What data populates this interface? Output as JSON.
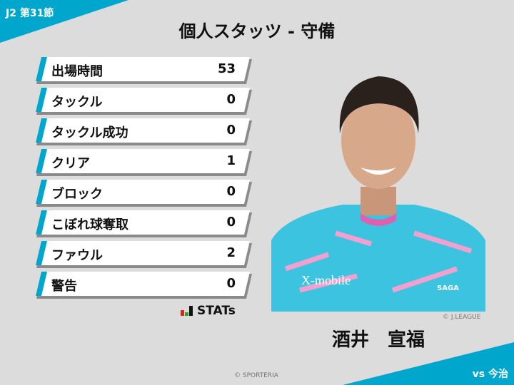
{
  "header": {
    "round": "J2 第31節",
    "title": "個人スタッツ - 守備",
    "opponent": "vs 今治"
  },
  "stats": [
    {
      "label": "出場時間",
      "value": "53"
    },
    {
      "label": "タックル",
      "value": "0"
    },
    {
      "label": "タックル成功",
      "value": "0"
    },
    {
      "label": "クリア",
      "value": "1"
    },
    {
      "label": "ブロック",
      "value": "0"
    },
    {
      "label": "こぼれ球奪取",
      "value": "0"
    },
    {
      "label": "ファウル",
      "value": "2"
    },
    {
      "label": "警告",
      "value": "0"
    }
  ],
  "brand": {
    "stats_logo": "STATs"
  },
  "player": {
    "name": "酒井　宣福",
    "photo_credit": "© J.LEAGUE",
    "jersey_sponsor": "X-mobile",
    "jersey_text": "SAGA"
  },
  "footer": {
    "credit": "© SPORTERIA"
  },
  "colors": {
    "accent": "#00a6cc",
    "background": "#dcdcdc",
    "jersey": "#3cc3e0",
    "jersey_pink": "#f2a0d0"
  }
}
